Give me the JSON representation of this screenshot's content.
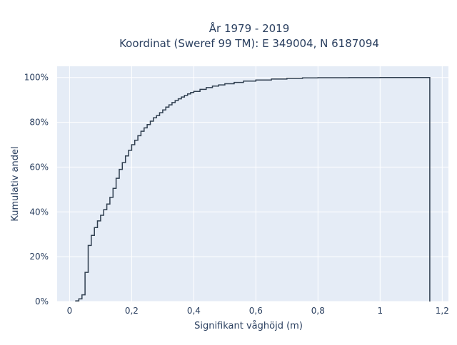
{
  "chart_data": {
    "type": "line",
    "line_shape": "step",
    "title_line1": "År 1979 - 2019",
    "title_line2": "Koordinat (Sweref 99 TM): E 349004, N 6187094",
    "xlabel": "Signifikant våghöjd (m)",
    "ylabel": "Kumulativ andel",
    "xlim": [
      -0.04,
      1.22
    ],
    "ylim": [
      0,
      1.05
    ],
    "x_ticks": [
      0,
      0.2,
      0.4,
      0.6,
      0.8,
      1,
      1.2
    ],
    "x_tick_labels": [
      "0",
      "0,2",
      "0,4",
      "0,6",
      "0,8",
      "1",
      "1,2"
    ],
    "y_ticks": [
      0,
      0.2,
      0.4,
      0.6,
      0.8,
      1
    ],
    "y_tick_labels": [
      "0%",
      "20%",
      "40%",
      "60%",
      "80%",
      "100%"
    ],
    "grid": true,
    "colors": {
      "background": "#e5ecf6",
      "line": "#2f3e4f",
      "text": "#2a3f5f"
    },
    "series": [
      {
        "x": [
          0.02,
          0.03,
          0.04,
          0.05,
          0.06,
          0.07,
          0.08,
          0.09,
          0.1,
          0.11,
          0.12,
          0.13,
          0.14,
          0.15,
          0.16,
          0.17,
          0.18,
          0.19,
          0.2,
          0.21,
          0.22,
          0.23,
          0.24,
          0.25,
          0.26,
          0.27,
          0.28,
          0.29,
          0.3,
          0.31,
          0.32,
          0.33,
          0.34,
          0.35,
          0.36,
          0.37,
          0.38,
          0.39,
          0.4,
          0.42,
          0.44,
          0.46,
          0.48,
          0.5,
          0.53,
          0.56,
          0.6,
          0.65,
          0.7,
          0.75,
          0.8,
          0.9,
          1.0,
          1.1,
          1.16
        ],
        "y": [
          0.003,
          0.012,
          0.03,
          0.13,
          0.25,
          0.295,
          0.33,
          0.36,
          0.385,
          0.41,
          0.435,
          0.465,
          0.505,
          0.55,
          0.59,
          0.62,
          0.65,
          0.675,
          0.7,
          0.72,
          0.74,
          0.76,
          0.775,
          0.79,
          0.805,
          0.82,
          0.83,
          0.843,
          0.855,
          0.868,
          0.878,
          0.888,
          0.897,
          0.905,
          0.913,
          0.92,
          0.927,
          0.933,
          0.938,
          0.947,
          0.955,
          0.962,
          0.967,
          0.972,
          0.978,
          0.984,
          0.989,
          0.993,
          0.996,
          0.998,
          0.999,
          0.9995,
          0.9998,
          0.9999,
          1.0
        ]
      }
    ]
  }
}
